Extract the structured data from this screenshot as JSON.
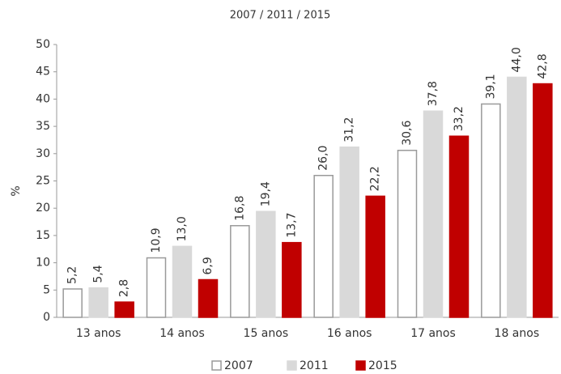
{
  "chart_data": {
    "type": "bar",
    "title": "2007 / 2011 / 2015",
    "y_label": "%",
    "categories": [
      "13 anos",
      "14 anos",
      "15 anos",
      "16 anos",
      "17 anos",
      "18 anos"
    ],
    "series": [
      {
        "name": "2007",
        "color": "#ffffff",
        "edge": "#9a9a9a",
        "values": [
          5.2,
          10.9,
          16.8,
          26.0,
          30.6,
          39.1
        ],
        "value_labels": [
          "5,2",
          "10,9",
          "16,8",
          "26,0",
          "30,6",
          "39,1"
        ]
      },
      {
        "name": "2011",
        "color": "#d9d9d9",
        "edge": "#d9d9d9",
        "values": [
          5.4,
          13.0,
          19.4,
          31.2,
          37.8,
          44.0
        ],
        "value_labels": [
          "5,4",
          "13,0",
          "19,4",
          "31,2",
          "37,8",
          "44,0"
        ]
      },
      {
        "name": "2015",
        "color": "#c00000",
        "edge": "#c00000",
        "values": [
          2.8,
          6.9,
          13.7,
          22.2,
          33.2,
          42.8
        ],
        "value_labels": [
          "2,8",
          "6,9",
          "13,7",
          "22,2",
          "33,2",
          "42,8"
        ]
      }
    ],
    "ylim": [
      0,
      50
    ],
    "yticks": [
      0,
      5,
      10,
      15,
      20,
      25,
      30,
      35,
      40,
      45,
      50
    ],
    "grid": false,
    "legend": "bottom"
  }
}
